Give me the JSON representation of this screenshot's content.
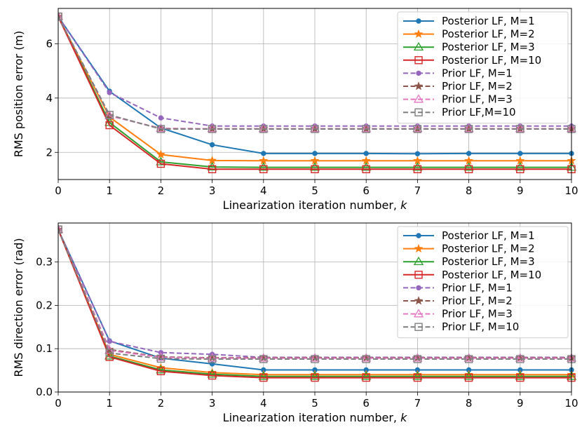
{
  "chart_data": [
    {
      "type": "line",
      "xlabel": "Linearization iteration number, k",
      "ylabel": "RMS position error (m)",
      "xlim": [
        0,
        10
      ],
      "ylim": [
        1.0,
        7.3
      ],
      "xticks": [
        "0",
        "1",
        "2",
        "3",
        "4",
        "5",
        "6",
        "7",
        "8",
        "9",
        "10"
      ],
      "yticks": [
        "2",
        "4",
        "6"
      ],
      "legend_position": "top-right",
      "grid": true,
      "x": [
        0,
        1,
        2,
        3,
        4,
        5,
        6,
        7,
        8,
        9,
        10
      ],
      "series": [
        {
          "name": "Posterior LF, M=1",
          "color": "#1f77b4",
          "marker": "circle",
          "dash": "solid",
          "values": [
            7.0,
            4.25,
            2.9,
            2.28,
            1.96,
            1.96,
            1.96,
            1.95,
            1.96,
            1.96,
            1.96
          ]
        },
        {
          "name": "Posterior LF, M=2",
          "color": "#ff7f0e",
          "marker": "star",
          "dash": "solid",
          "values": [
            7.0,
            3.3,
            1.92,
            1.7,
            1.69,
            1.69,
            1.69,
            1.69,
            1.69,
            1.69,
            1.69
          ]
        },
        {
          "name": "Posterior LF, M=3",
          "color": "#2ca02c",
          "marker": "triangle",
          "dash": "solid",
          "values": [
            7.0,
            3.1,
            1.65,
            1.46,
            1.45,
            1.45,
            1.45,
            1.45,
            1.45,
            1.45,
            1.45
          ]
        },
        {
          "name": "Posterior LF, M=10",
          "color": "#d62728",
          "marker": "square",
          "dash": "solid",
          "values": [
            7.0,
            3.0,
            1.58,
            1.38,
            1.38,
            1.38,
            1.38,
            1.38,
            1.38,
            1.38,
            1.38
          ]
        },
        {
          "name": "Prior LF, M=1",
          "color": "#9467bd",
          "marker": "circle",
          "dash": "dashed",
          "values": [
            7.0,
            4.2,
            3.27,
            2.97,
            2.97,
            2.97,
            2.97,
            2.97,
            2.97,
            2.97,
            2.97
          ]
        },
        {
          "name": "Prior LF, M=2",
          "color": "#8c564b",
          "marker": "star",
          "dash": "dashed",
          "values": [
            7.0,
            3.35,
            2.88,
            2.87,
            2.87,
            2.87,
            2.87,
            2.87,
            2.87,
            2.87,
            2.87
          ]
        },
        {
          "name": "Prior LF, M=3",
          "color": "#e377c2",
          "marker": "triangle",
          "dash": "dashed",
          "values": [
            7.0,
            3.35,
            2.88,
            2.87,
            2.87,
            2.87,
            2.87,
            2.87,
            2.87,
            2.87,
            2.87
          ]
        },
        {
          "name": "Prior LF,M=10",
          "color": "#7f7f7f",
          "marker": "square",
          "dash": "dashed",
          "values": [
            7.0,
            3.38,
            2.86,
            2.86,
            2.86,
            2.86,
            2.86,
            2.86,
            2.86,
            2.86,
            2.86
          ]
        }
      ]
    },
    {
      "type": "line",
      "xlabel": "Linearization iteration number, k",
      "ylabel": "RMS direction error (rad)",
      "xlim": [
        0,
        10
      ],
      "ylim": [
        0.0,
        0.39
      ],
      "xticks": [
        "0",
        "1",
        "2",
        "3",
        "4",
        "5",
        "6",
        "7",
        "8",
        "9",
        "10"
      ],
      "yticks": [
        "0.0",
        "0.1",
        "0.2",
        "0.3"
      ],
      "legend_position": "top-right",
      "grid": true,
      "x": [
        0,
        1,
        2,
        3,
        4,
        5,
        6,
        7,
        8,
        9,
        10
      ],
      "series": [
        {
          "name": "Posterior LF, M=1",
          "color": "#1f77b4",
          "marker": "circle",
          "dash": "solid",
          "values": [
            0.375,
            0.118,
            0.078,
            0.065,
            0.051,
            0.051,
            0.051,
            0.051,
            0.051,
            0.051,
            0.051
          ]
        },
        {
          "name": "Posterior LF, M=2",
          "color": "#ff7f0e",
          "marker": "star",
          "dash": "solid",
          "values": [
            0.375,
            0.087,
            0.056,
            0.045,
            0.04,
            0.04,
            0.04,
            0.04,
            0.04,
            0.04,
            0.04
          ]
        },
        {
          "name": "Posterior LF, M=3",
          "color": "#2ca02c",
          "marker": "triangle",
          "dash": "solid",
          "values": [
            0.375,
            0.083,
            0.051,
            0.041,
            0.036,
            0.036,
            0.036,
            0.036,
            0.036,
            0.036,
            0.036
          ]
        },
        {
          "name": "Posterior LF, M=10",
          "color": "#d62728",
          "marker": "square",
          "dash": "solid",
          "values": [
            0.375,
            0.081,
            0.048,
            0.038,
            0.033,
            0.033,
            0.033,
            0.033,
            0.033,
            0.033,
            0.033
          ]
        },
        {
          "name": "Prior LF, M=1",
          "color": "#9467bd",
          "marker": "circle",
          "dash": "dashed",
          "values": [
            0.375,
            0.117,
            0.091,
            0.087,
            0.08,
            0.08,
            0.08,
            0.08,
            0.08,
            0.08,
            0.08
          ]
        },
        {
          "name": "Prior LF, M=2",
          "color": "#8c564b",
          "marker": "star",
          "dash": "dashed",
          "values": [
            0.375,
            0.098,
            0.081,
            0.079,
            0.079,
            0.079,
            0.079,
            0.079,
            0.079,
            0.079,
            0.079
          ]
        },
        {
          "name": "Prior LF, M=3",
          "color": "#e377c2",
          "marker": "triangle",
          "dash": "dashed",
          "values": [
            0.375,
            0.096,
            0.08,
            0.078,
            0.078,
            0.078,
            0.078,
            0.078,
            0.078,
            0.078,
            0.078
          ]
        },
        {
          "name": "Prior LF, M=10",
          "color": "#7f7f7f",
          "marker": "square",
          "dash": "dashed",
          "values": [
            0.375,
            0.09,
            0.077,
            0.076,
            0.076,
            0.076,
            0.076,
            0.076,
            0.076,
            0.076,
            0.076
          ]
        }
      ]
    }
  ]
}
